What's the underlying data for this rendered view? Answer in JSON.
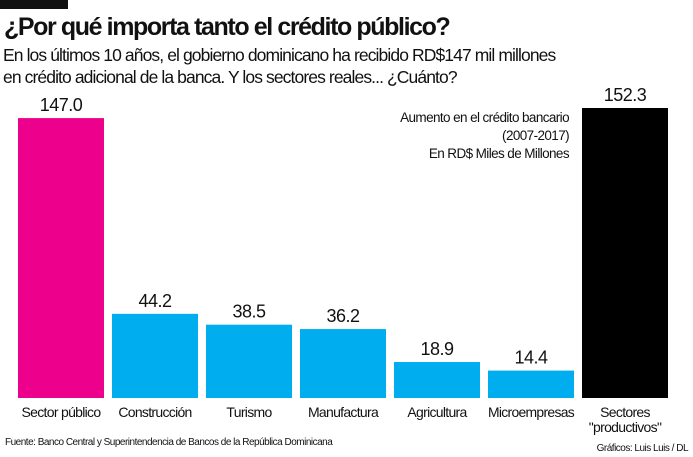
{
  "header": {
    "title": "¿Por qué importa tanto el crédito público?",
    "subtitle_line1": "En los últimos 10 años, el gobierno dominicano ha recibido RD$147 mil millones",
    "subtitle_line2": "en crédito adicional de la banca. Y los sectores reales... ¿Cuánto?"
  },
  "note": {
    "line1": "Aumento en el crédito bancario",
    "line2": "(2007-2017)",
    "line3": "En RD$ Miles de Millones"
  },
  "chart_data": {
    "type": "bar",
    "categories": [
      "Sector público",
      "Construcción",
      "Turismo",
      "Manufactura",
      "Agricultura",
      "Microempresas",
      "Sectores \"productivos\""
    ],
    "values": [
      147.0,
      44.2,
      38.5,
      36.2,
      18.9,
      14.4,
      152.3
    ],
    "value_labels": [
      "147.0",
      "44.2",
      "38.5",
      "36.2",
      "18.9",
      "14.4",
      "152.3"
    ],
    "colors": [
      "#ec008c",
      "#00aeef",
      "#00aeef",
      "#00aeef",
      "#00aeef",
      "#00aeef",
      "#000000"
    ],
    "ylim": [
      0,
      152.3
    ],
    "grid": false
  },
  "footer": {
    "source": "Fuente: Banco Central y Superintendencia de Bancos de la República Dominicana",
    "credit": "Gráficos: Luis Luis / DL"
  }
}
